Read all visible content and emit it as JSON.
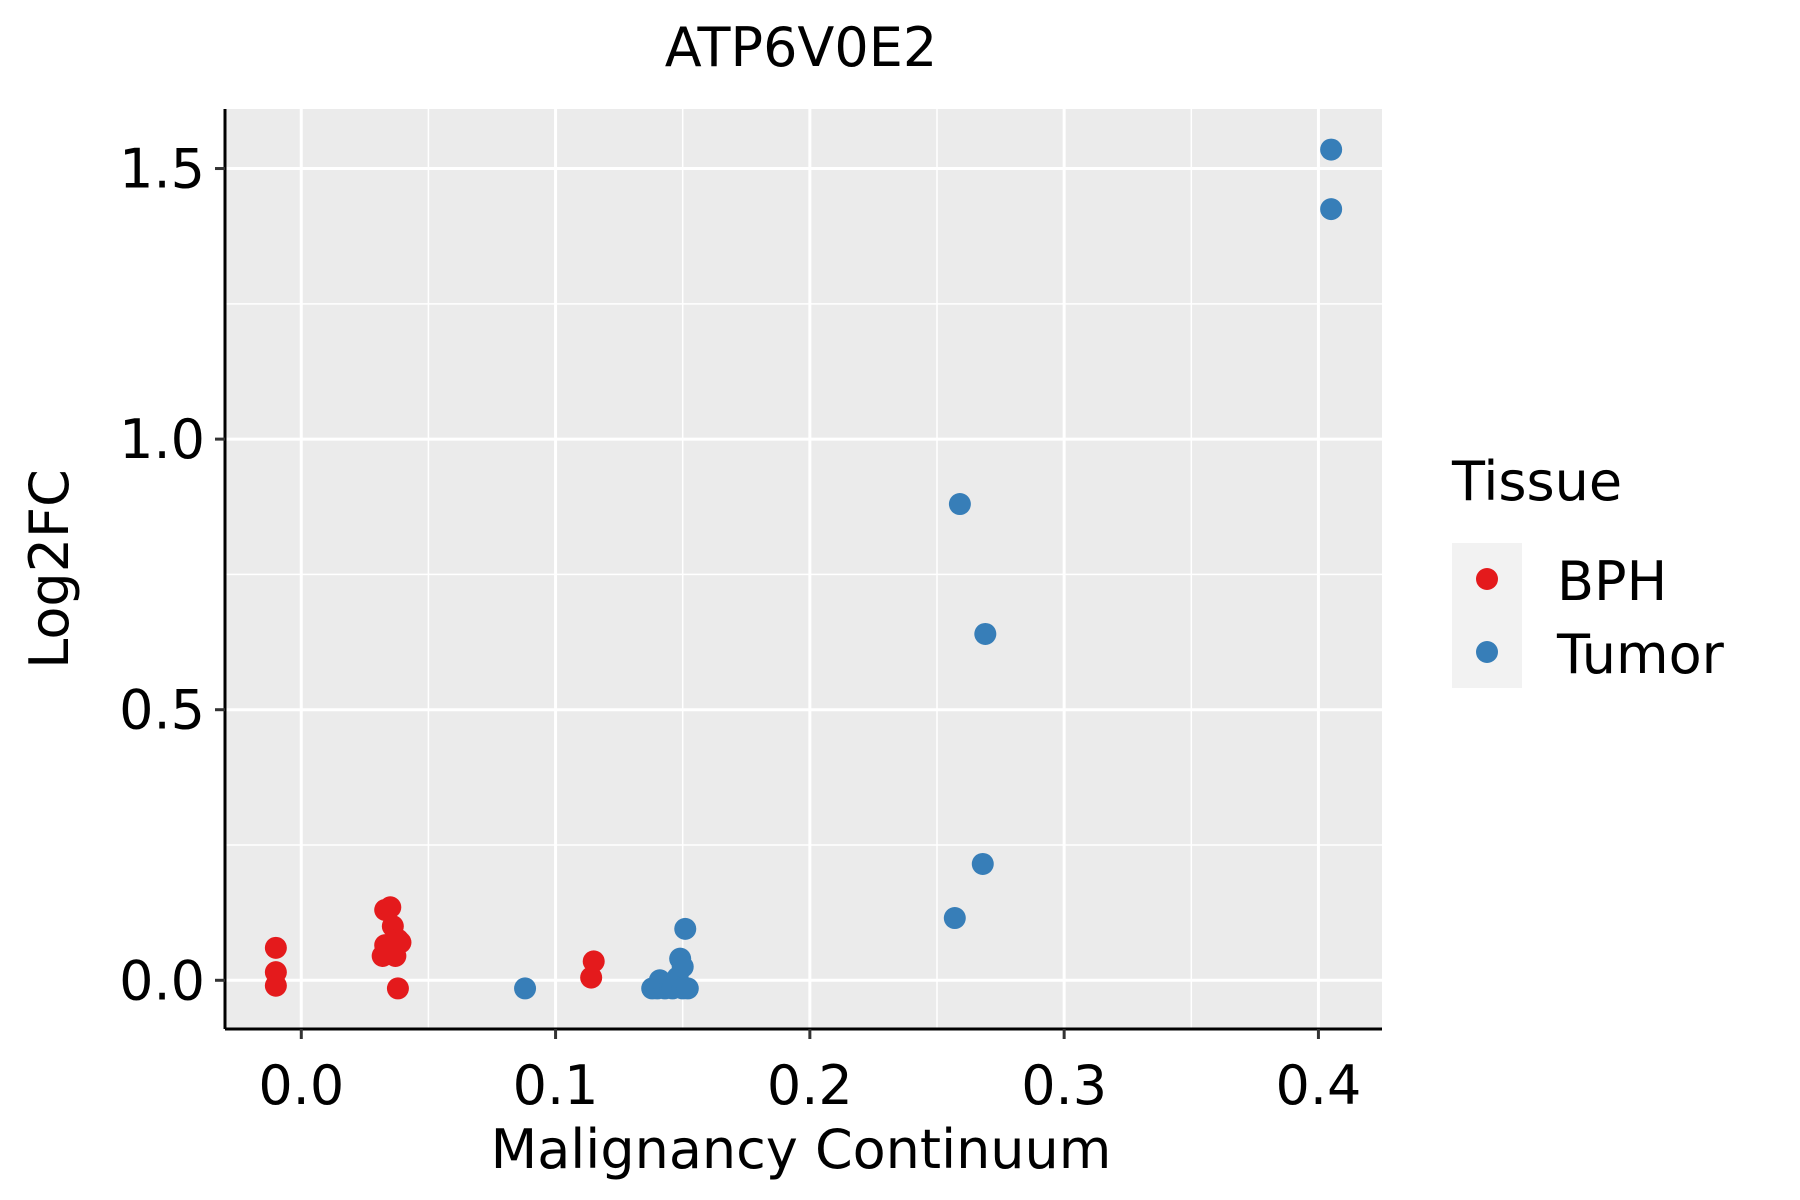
{
  "chart_data": {
    "type": "scatter",
    "title": "ATP6V0E2",
    "xlabel": "Malignancy Continuum",
    "ylabel": "Log2FC",
    "xlim": [
      -0.03,
      0.425
    ],
    "ylim": [
      -0.09,
      1.61
    ],
    "x_ticks": [
      0.0,
      0.1,
      0.2,
      0.3,
      0.4
    ],
    "x_tick_labels": [
      "0.0",
      "0.1",
      "0.2",
      "0.3",
      "0.4"
    ],
    "y_ticks": [
      0.0,
      0.5,
      1.0,
      1.5
    ],
    "y_tick_labels": [
      "0.0",
      "0.5",
      "1.0",
      "1.5"
    ],
    "grid": true,
    "legend": {
      "title": "Tissue",
      "position": "right",
      "entries": [
        {
          "label": "BPH",
          "color": "#E41A1C"
        },
        {
          "label": "Tumor",
          "color": "#377EB8"
        }
      ]
    },
    "series": [
      {
        "name": "BPH",
        "color": "#E41A1C",
        "points": [
          {
            "x": -0.01,
            "y": 0.06
          },
          {
            "x": -0.01,
            "y": 0.015
          },
          {
            "x": -0.01,
            "y": -0.01
          },
          {
            "x": 0.032,
            "y": 0.045
          },
          {
            "x": 0.033,
            "y": 0.065
          },
          {
            "x": 0.033,
            "y": 0.13
          },
          {
            "x": 0.035,
            "y": 0.135
          },
          {
            "x": 0.036,
            "y": 0.06
          },
          {
            "x": 0.036,
            "y": 0.1
          },
          {
            "x": 0.037,
            "y": 0.045
          },
          {
            "x": 0.038,
            "y": 0.075
          },
          {
            "x": 0.039,
            "y": 0.07
          },
          {
            "x": 0.038,
            "y": -0.015
          },
          {
            "x": 0.114,
            "y": 0.005
          },
          {
            "x": 0.115,
            "y": 0.035
          }
        ]
      },
      {
        "name": "Tumor",
        "color": "#377EB8",
        "points": [
          {
            "x": 0.088,
            "y": -0.015
          },
          {
            "x": 0.138,
            "y": -0.015
          },
          {
            "x": 0.14,
            "y": -0.015
          },
          {
            "x": 0.141,
            "y": 0.0
          },
          {
            "x": 0.143,
            "y": -0.015
          },
          {
            "x": 0.145,
            "y": -0.01
          },
          {
            "x": 0.146,
            "y": -0.015
          },
          {
            "x": 0.148,
            "y": 0.005
          },
          {
            "x": 0.149,
            "y": 0.04
          },
          {
            "x": 0.15,
            "y": 0.025
          },
          {
            "x": 0.15,
            "y": -0.015
          },
          {
            "x": 0.151,
            "y": 0.095
          },
          {
            "x": 0.152,
            "y": -0.015
          },
          {
            "x": 0.257,
            "y": 0.115
          },
          {
            "x": 0.259,
            "y": 0.88
          },
          {
            "x": 0.268,
            "y": 0.215
          },
          {
            "x": 0.269,
            "y": 0.64
          },
          {
            "x": 0.405,
            "y": 1.425
          },
          {
            "x": 0.405,
            "y": 1.535
          }
        ]
      }
    ]
  }
}
